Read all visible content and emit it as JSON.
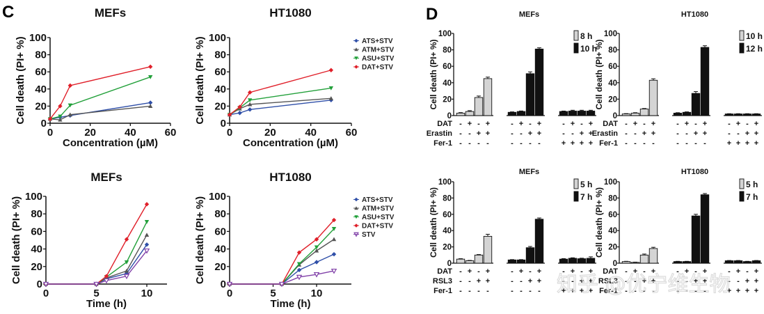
{
  "panels": {
    "C": "C",
    "D": "D"
  },
  "watermark": "知乎 @优宁维生物",
  "colors": {
    "ATS+STV": "#2f4fa8",
    "ATM+STV": "#555555",
    "ASU+STV": "#22a03a",
    "DAT+STV": "#e0202a",
    "STV": "#8040a8",
    "bar_light": "#d4d4d4",
    "bar_dark": "#111111"
  },
  "chart_data": [
    {
      "id": "C-conc-MEFs",
      "type": "line",
      "title": "MEFs",
      "xlabel": "Concentration (µM)",
      "ylabel": "Cell death (PI+ %)",
      "xlim": [
        0,
        60
      ],
      "ylim": [
        0,
        100
      ],
      "xticks": [
        0,
        20,
        40,
        60
      ],
      "yticks": [
        0,
        20,
        40,
        60,
        80,
        100
      ],
      "x": [
        0,
        5,
        10,
        50
      ],
      "series": [
        {
          "name": "ATS+STV",
          "marker": "diamond",
          "values": [
            5,
            7,
            9,
            24
          ]
        },
        {
          "name": "ATM+STV",
          "marker": "triangle-up",
          "values": [
            5,
            4,
            10,
            20
          ]
        },
        {
          "name": "ASU+STV",
          "marker": "triangle-down",
          "values": [
            5,
            8,
            21,
            54
          ]
        },
        {
          "name": "DAT+STV",
          "marker": "diamond",
          "values": [
            5,
            20,
            44,
            66
          ]
        }
      ],
      "legend": "none"
    },
    {
      "id": "C-conc-HT1080",
      "type": "line",
      "title": "HT1080",
      "xlabel": "Concentration (µM)",
      "ylabel": "Cell death (PI+ %)",
      "xlim": [
        0,
        60
      ],
      "ylim": [
        0,
        100
      ],
      "xticks": [
        0,
        20,
        40,
        60
      ],
      "yticks": [
        0,
        20,
        40,
        60,
        80,
        100
      ],
      "x": [
        0,
        5,
        10,
        50
      ],
      "series": [
        {
          "name": "ATS+STV",
          "marker": "diamond",
          "values": [
            10,
            12,
            16,
            27
          ]
        },
        {
          "name": "ATM+STV",
          "marker": "triangle-up",
          "values": [
            10,
            17,
            22,
            29
          ]
        },
        {
          "name": "ASU+STV",
          "marker": "triangle-down",
          "values": [
            10,
            18,
            27,
            41
          ]
        },
        {
          "name": "DAT+STV",
          "marker": "diamond",
          "values": [
            10,
            19,
            36,
            62
          ]
        }
      ],
      "legend": "right"
    },
    {
      "id": "C-time-MEFs",
      "type": "line",
      "title": "MEFs",
      "xlabel": "Time (h)",
      "ylabel": "Cell death (PI+ %)",
      "xlim": [
        0,
        12
      ],
      "ylim": [
        0,
        100
      ],
      "xticks": [
        0,
        5,
        10
      ],
      "yticks": [
        0,
        20,
        40,
        60,
        80,
        100
      ],
      "x": [
        0,
        5,
        6,
        8,
        10
      ],
      "series": [
        {
          "name": "ATS+STV",
          "marker": "diamond",
          "values": [
            0,
            0,
            6,
            12,
            45
          ]
        },
        {
          "name": "ATM+STV",
          "marker": "triangle-up",
          "values": [
            0,
            0,
            7,
            15,
            56
          ]
        },
        {
          "name": "ASU+STV",
          "marker": "triangle-down",
          "values": [
            0,
            0,
            8,
            25,
            71
          ]
        },
        {
          "name": "DAT+STV",
          "marker": "diamond",
          "values": [
            0,
            0,
            9,
            51,
            91
          ]
        },
        {
          "name": "STV",
          "marker": "triangle-down-open",
          "values": [
            0,
            0,
            4,
            9,
            38
          ]
        }
      ],
      "legend": "none"
    },
    {
      "id": "C-time-HT1080",
      "type": "line",
      "title": "HT1080",
      "xlabel": "Time (h)",
      "ylabel": "Cell death (PI+ %)",
      "xlim": [
        0,
        14
      ],
      "ylim": [
        0,
        100
      ],
      "xticks": [
        0,
        5,
        10
      ],
      "yticks": [
        0,
        20,
        40,
        60,
        80,
        100
      ],
      "x": [
        0,
        6,
        8,
        10,
        12
      ],
      "series": [
        {
          "name": "ATS+STV",
          "marker": "diamond",
          "values": [
            0,
            0,
            16,
            25,
            34
          ]
        },
        {
          "name": "ATM+STV",
          "marker": "triangle-up",
          "values": [
            0,
            0,
            22,
            38,
            51
          ]
        },
        {
          "name": "ASU+STV",
          "marker": "triangle-down",
          "values": [
            0,
            0,
            23,
            42,
            63
          ]
        },
        {
          "name": "DAT+STV",
          "marker": "diamond",
          "values": [
            0,
            0,
            36,
            51,
            73
          ]
        },
        {
          "name": "STV",
          "marker": "triangle-down-open",
          "values": [
            0,
            0,
            8,
            11,
            15
          ]
        }
      ],
      "legend": "right"
    },
    {
      "id": "D-erastin-MEFs",
      "type": "bar",
      "title": "MEFs",
      "ylabel": "Cell death (PI+ %)",
      "ylim": [
        0,
        100
      ],
      "yticks": [
        0,
        20,
        40,
        60,
        80,
        100
      ],
      "legend_entries": [
        {
          "label": "8 h",
          "fill": "light"
        },
        {
          "label": "10 h",
          "fill": "dark"
        }
      ],
      "condition_rows": [
        {
          "label": "DAT",
          "signs": [
            "-",
            "+",
            "-",
            "+",
            "-",
            "+",
            "-",
            "+",
            "-",
            "+",
            "-",
            "+"
          ]
        },
        {
          "label": "Erastin",
          "signs": [
            "-",
            "-",
            "+",
            "+",
            "-",
            "-",
            "+",
            "+",
            "-",
            "-",
            "+",
            "+"
          ]
        },
        {
          "label": "Fer-1",
          "signs": [
            "-",
            "-",
            "-",
            "-",
            "-",
            "-",
            "-",
            "-",
            "+",
            "+",
            "+",
            "+"
          ]
        }
      ],
      "groups": [
        {
          "fill": "light",
          "values": [
            3,
            5,
            22,
            45
          ],
          "errors": [
            0.6,
            1,
            1.8,
            1.8
          ]
        },
        {
          "fill": "dark",
          "values": [
            4,
            5,
            51,
            81
          ],
          "errors": [
            0.5,
            0.6,
            2.2,
            1.5
          ]
        },
        {
          "fill": "dark",
          "values": [
            5,
            5.5,
            5.5,
            5.5
          ],
          "errors": [
            0.5,
            1,
            1,
            1
          ]
        }
      ]
    },
    {
      "id": "D-erastin-HT1080",
      "type": "bar",
      "title": "HT1080",
      "ylabel": "Cell death (PI+ %)",
      "ylim": [
        0,
        100
      ],
      "yticks": [
        0,
        20,
        40,
        60,
        80,
        100
      ],
      "legend_entries": [
        {
          "label": "10 h",
          "fill": "light"
        },
        {
          "label": "12 h",
          "fill": "dark"
        }
      ],
      "condition_rows": [
        {
          "label": "DAT",
          "signs": [
            "-",
            "+",
            "-",
            "+",
            "-",
            "+",
            "-",
            "+",
            "-",
            "+",
            "-",
            "+"
          ]
        },
        {
          "label": "Erastin",
          "signs": [
            "-",
            "-",
            "+",
            "+",
            "-",
            "-",
            "+",
            "+",
            "-",
            "-",
            "+",
            "+"
          ]
        },
        {
          "label": "Fer-1",
          "signs": [
            "-",
            "-",
            "-",
            "-",
            "-",
            "-",
            "-",
            "-",
            "+",
            "+",
            "+",
            "+"
          ]
        }
      ],
      "groups": [
        {
          "fill": "light",
          "values": [
            2,
            3,
            8,
            43
          ],
          "errors": [
            0.4,
            0.5,
            0.6,
            1.8
          ]
        },
        {
          "fill": "dark",
          "values": [
            3,
            4,
            27,
            83
          ],
          "errors": [
            0.5,
            0.5,
            2.2,
            2
          ]
        },
        {
          "fill": "dark",
          "values": [
            2,
            2,
            2,
            2
          ],
          "errors": [
            0.3,
            0.3,
            0.3,
            0.3
          ]
        }
      ]
    },
    {
      "id": "D-RSL3-MEFs",
      "type": "bar",
      "title": "MEFs",
      "ylabel": "Cell death (PI+ %)",
      "ylim": [
        0,
        100
      ],
      "yticks": [
        0,
        20,
        40,
        60,
        80,
        100
      ],
      "legend_entries": [
        {
          "label": "5 h",
          "fill": "light"
        },
        {
          "label": "7 h",
          "fill": "dark"
        }
      ],
      "condition_rows": [
        {
          "label": "DAT",
          "signs": [
            "-",
            "+",
            "-",
            "+",
            "-",
            "+",
            "-",
            "+",
            "-",
            "+",
            "-",
            "+"
          ]
        },
        {
          "label": "RSL3",
          "signs": [
            "-",
            "-",
            "+",
            "+",
            "-",
            "-",
            "+",
            "+",
            "-",
            "-",
            "+",
            "+"
          ]
        },
        {
          "label": "Fer-1",
          "signs": [
            "-",
            "-",
            "-",
            "-",
            "-",
            "-",
            "-",
            "-",
            "+",
            "+",
            "+",
            "+"
          ]
        }
      ],
      "groups": [
        {
          "fill": "light",
          "values": [
            5,
            3,
            10,
            33
          ],
          "errors": [
            0.5,
            0.4,
            0.6,
            2.5
          ]
        },
        {
          "fill": "dark",
          "values": [
            4,
            4,
            19,
            54
          ],
          "errors": [
            0.4,
            0.4,
            1.5,
            1.5
          ]
        },
        {
          "fill": "dark",
          "values": [
            5,
            6,
            5.5,
            6
          ],
          "errors": [
            0.6,
            0.6,
            0.6,
            1.8
          ]
        }
      ]
    },
    {
      "id": "D-RSL3-HT1080",
      "type": "bar",
      "title": "HT1080",
      "ylabel": "Cell death (PI+ %)",
      "ylim": [
        0,
        100
      ],
      "yticks": [
        0,
        20,
        40,
        60,
        80,
        100
      ],
      "legend_entries": [
        {
          "label": "5 h",
          "fill": "light"
        },
        {
          "label": "7 h",
          "fill": "dark"
        }
      ],
      "condition_rows": [
        {
          "label": "DAT",
          "signs": [
            "-",
            "+",
            "-",
            "+",
            "-",
            "+",
            "-",
            "+",
            "-",
            "+",
            "-",
            "+"
          ]
        },
        {
          "label": "RSL3",
          "signs": [
            "-",
            "-",
            "+",
            "+",
            "-",
            "-",
            "+",
            "+",
            "-",
            "-",
            "+",
            "+"
          ]
        },
        {
          "label": "Fer-1",
          "signs": [
            "-",
            "-",
            "-",
            "-",
            "-",
            "-",
            "-",
            "-",
            "+",
            "+",
            "+",
            "+"
          ]
        }
      ],
      "groups": [
        {
          "fill": "light",
          "values": [
            2,
            1,
            10,
            18
          ],
          "errors": [
            0.3,
            0.3,
            1.2,
            1.5
          ]
        },
        {
          "fill": "dark",
          "values": [
            2,
            2,
            58,
            84
          ],
          "errors": [
            0.3,
            0.3,
            2,
            1.5
          ]
        },
        {
          "fill": "dark",
          "values": [
            3,
            3,
            2,
            3
          ],
          "errors": [
            0.3,
            0.3,
            0.3,
            0.3
          ]
        }
      ]
    }
  ]
}
